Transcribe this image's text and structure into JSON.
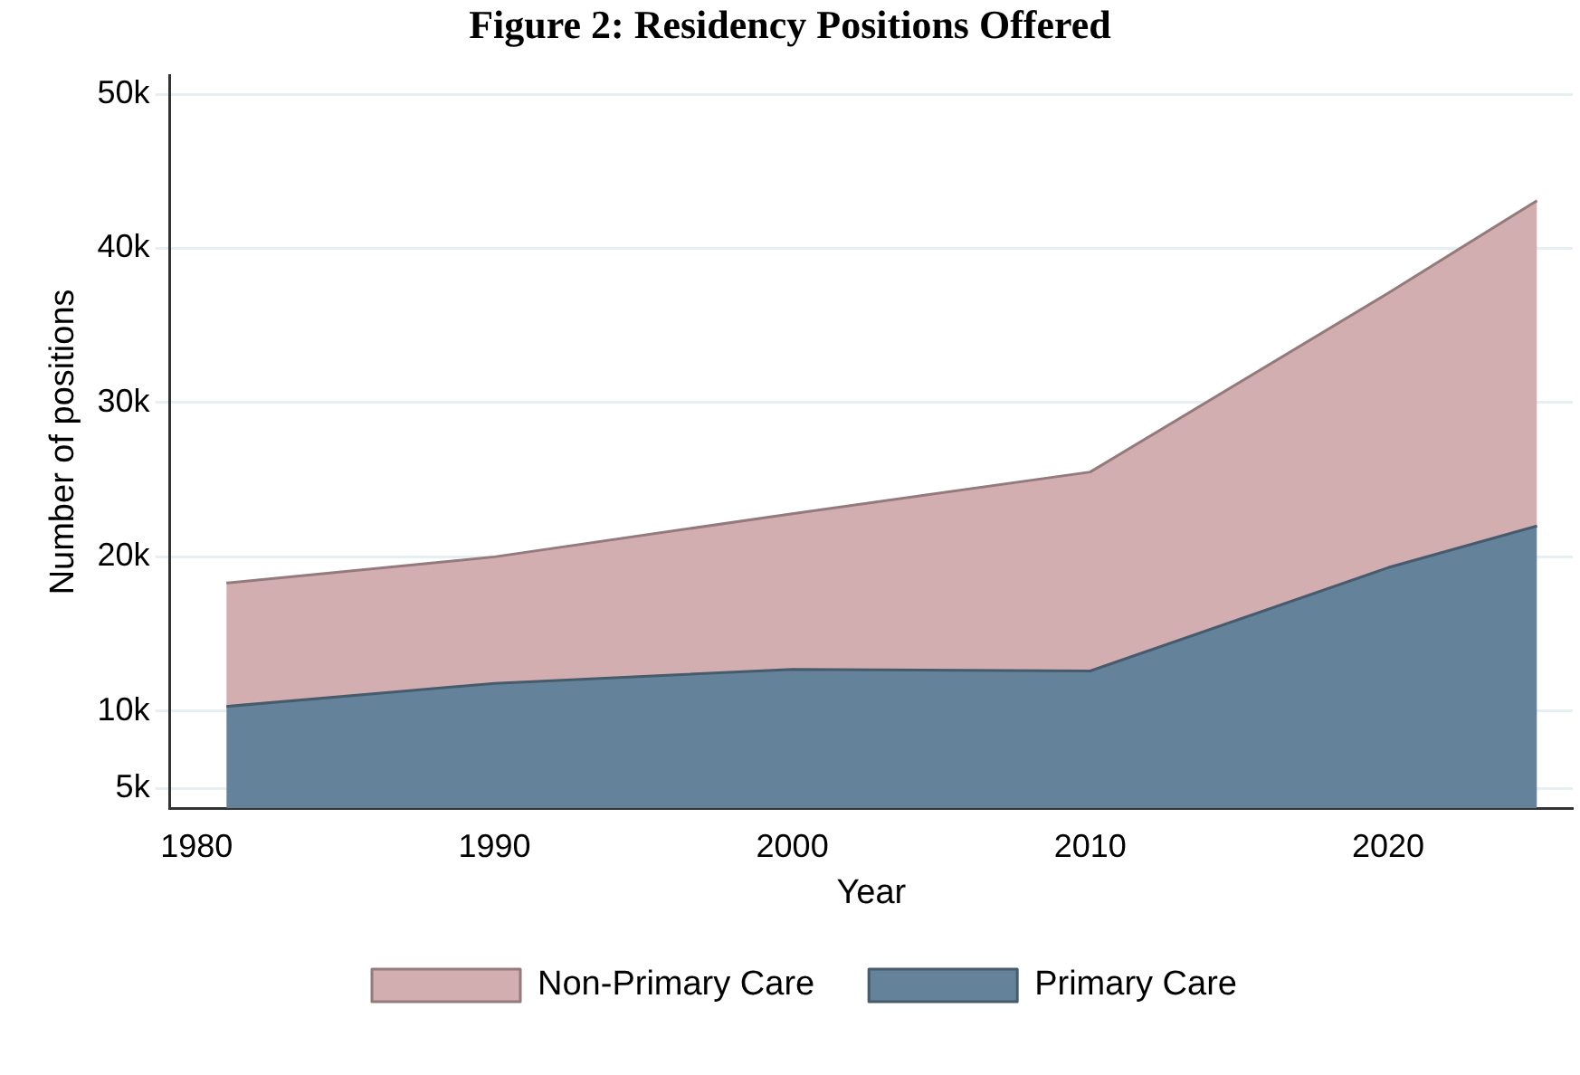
{
  "chart_data": {
    "type": "area",
    "title": "Figure 2: Residency Positions Offered",
    "xlabel": "Year",
    "ylabel": "Number of positions",
    "stacked": true,
    "x": [
      1981,
      1990,
      2000,
      2010,
      2020,
      2025
    ],
    "series": [
      {
        "name": "Primary Care",
        "color": "#64829a",
        "values": [
          10300,
          11800,
          12700,
          12600,
          19300,
          22000
        ]
      },
      {
        "name": "Non-Primary Care",
        "color": "#d3aeb1",
        "values": [
          8000,
          8200,
          10100,
          12900,
          17800,
          21100
        ]
      }
    ],
    "xlim": [
      1979.1,
      2026.2
    ],
    "xticks": [
      1980,
      1990,
      2000,
      2010,
      2020
    ],
    "ylim": [
      3700,
      51200
    ],
    "yticks": [
      {
        "value": 5000,
        "label": "5k"
      },
      {
        "value": 10000,
        "label": "10k"
      },
      {
        "value": 20000,
        "label": "20k"
      },
      {
        "value": 30000,
        "label": "30k"
      },
      {
        "value": 40000,
        "label": "40k"
      },
      {
        "value": 50000,
        "label": "50k"
      }
    ],
    "grid": "y",
    "legend": "bottom"
  }
}
